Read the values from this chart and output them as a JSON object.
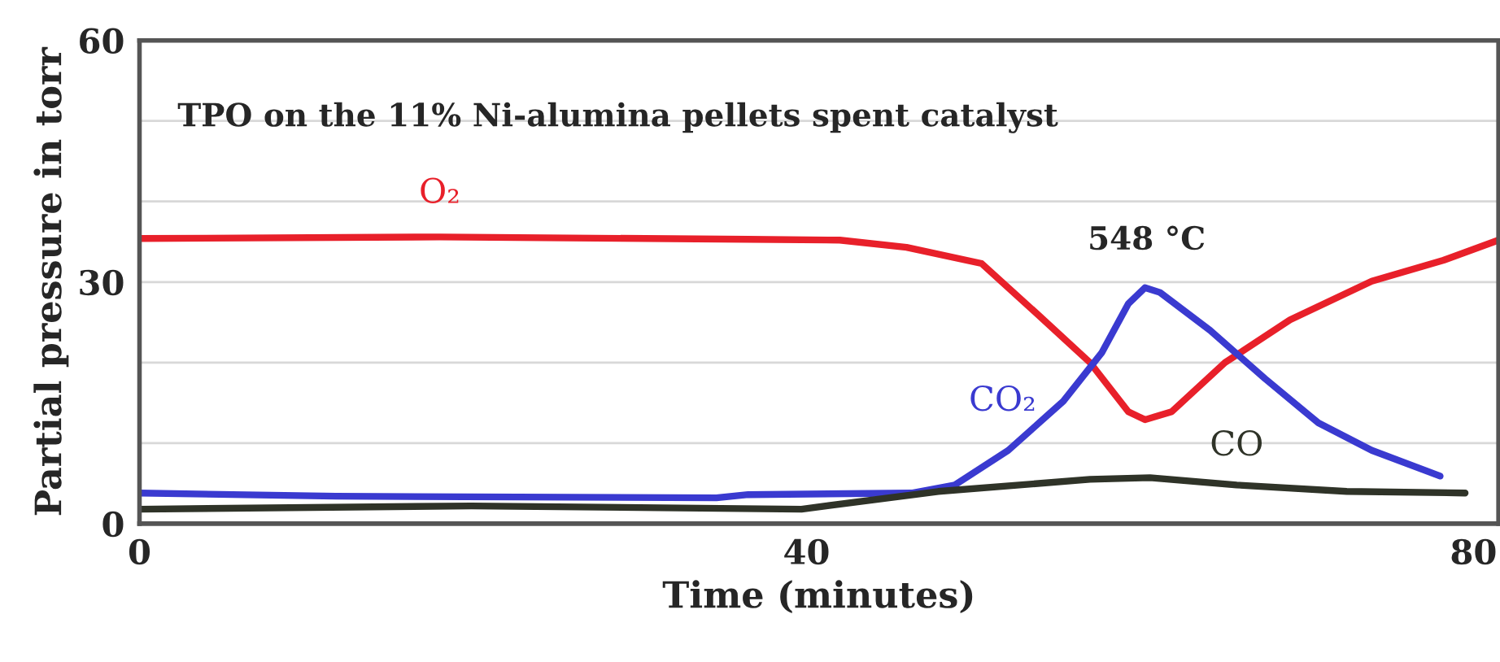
{
  "chart_data": {
    "type": "line",
    "title": "TPO on the 11% Ni-alumina pellets spent catalyst",
    "xlabel": "Time (minutes)",
    "ylabel": "Partial pressure in torr",
    "xlim": [
      0,
      81.5
    ],
    "xticks": [
      0,
      40,
      80
    ],
    "ylim": [
      0,
      60
    ],
    "yticks": [
      0,
      {
        "value": 10,
        "label": null
      },
      {
        "value": 20,
        "label": null
      },
      30,
      {
        "value": 40,
        "label": null
      },
      {
        "value": 50,
        "label": null
      },
      60
    ],
    "grid": "y",
    "legend": false,
    "marker": "none",
    "line_style": "solid",
    "series": [
      {
        "name": "O₂",
        "color": "#e8202a",
        "x": [
          0,
          18,
          36.5,
          42,
          46.0,
          50.5,
          53.8,
          57.0,
          59.3,
          60.3,
          61.9,
          65.1,
          69.0,
          73.9,
          78.2,
          81.5
        ],
        "values": [
          35.4,
          35.6,
          35.3,
          35.2,
          34.3,
          32.3,
          26.1,
          20.0,
          13.9,
          12.9,
          13.9,
          20.0,
          25.3,
          30.1,
          32.7,
          35.2
        ]
      },
      {
        "name": "CO₂",
        "color": "#3a3ad0",
        "x": [
          0,
          11.8,
          34.6,
          36.5,
          46.3,
          48.9,
          52.1,
          55.4,
          57.7,
          59.3,
          60.3,
          61.2,
          64.2,
          67.5,
          70.7,
          73.9,
          78.0
        ],
        "values": [
          3.8,
          3.4,
          3.2,
          3.6,
          3.8,
          4.8,
          9.1,
          15.2,
          21.2,
          27.3,
          29.3,
          28.7,
          24.0,
          18.0,
          12.5,
          9.1,
          5.9
        ]
      },
      {
        "name": "CO",
        "color": "#2f3328",
        "x": [
          0,
          19.9,
          39.7,
          47.9,
          57.0,
          60.6,
          65.8,
          72.4,
          79.5
        ],
        "values": [
          1.8,
          2.2,
          1.8,
          4.0,
          5.5,
          5.7,
          4.8,
          4.0,
          3.8
        ]
      }
    ],
    "annotations": [
      {
        "text": "548 °C",
        "x": 60.4,
        "y": 29.3
      }
    ]
  }
}
